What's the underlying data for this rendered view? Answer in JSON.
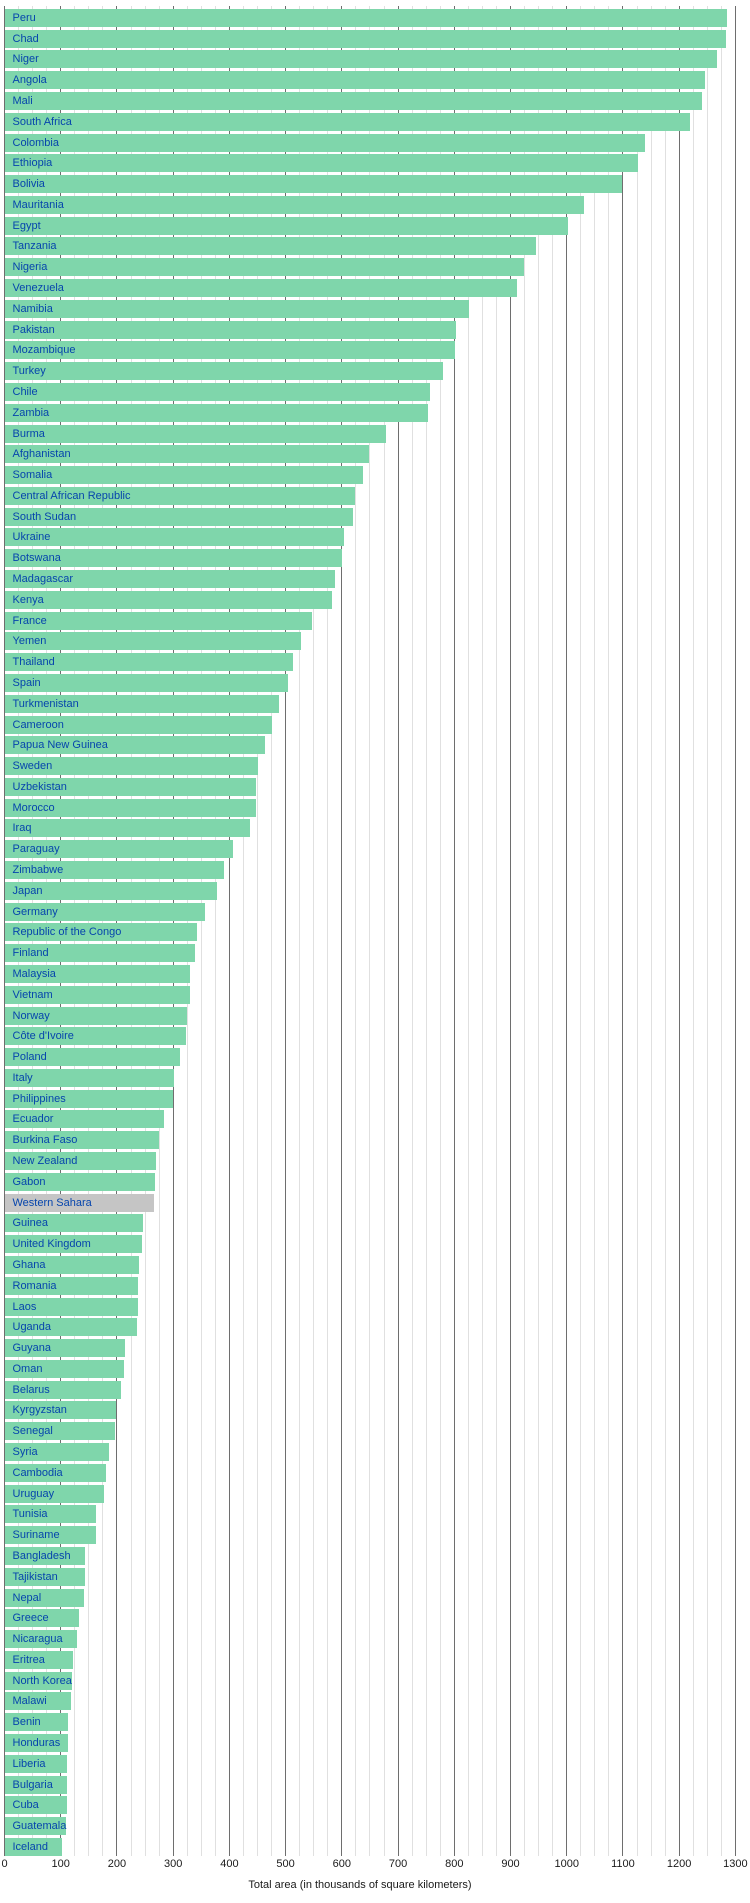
{
  "chart_data": {
    "type": "bar",
    "orientation": "horizontal",
    "title": "",
    "xlabel": "Total area (in thousands of square kilometers)",
    "ylabel": "",
    "x_axis": {
      "min": 0,
      "max": 1300,
      "major_step": 100,
      "minor_step": 25,
      "tick_labels": [
        "0",
        "100",
        "200",
        "300",
        "400",
        "500",
        "600",
        "700",
        "800",
        "900",
        "1000",
        "1100",
        "1200",
        "1300"
      ]
    },
    "legend": "none",
    "grid": "vertical, minor every 25 (light), major every 100 (dark)",
    "colors": {
      "bar": "#7fd6ab",
      "highlight_bar": "#c5c5c5",
      "label_link": "#0645ad",
      "gridline_minor": "#e0e0e0",
      "gridline_major": "#6e6e6e",
      "axis_text": "#1a1a1a"
    },
    "rows": [
      {
        "label": "Peru",
        "value": 1285.2
      },
      {
        "label": "Chad",
        "value": 1284.0
      },
      {
        "label": "Niger",
        "value": 1267.0
      },
      {
        "label": "Angola",
        "value": 1246.7
      },
      {
        "label": "Mali",
        "value": 1240.0
      },
      {
        "label": "South Africa",
        "value": 1219.9
      },
      {
        "label": "Colombia",
        "value": 1138.9
      },
      {
        "label": "Ethiopia",
        "value": 1127.1
      },
      {
        "label": "Bolivia",
        "value": 1098.6
      },
      {
        "label": "Mauritania",
        "value": 1030.7
      },
      {
        "label": "Egypt",
        "value": 1001.5
      },
      {
        "label": "Tanzania",
        "value": 945.1
      },
      {
        "label": "Nigeria",
        "value": 923.8
      },
      {
        "label": "Venezuela",
        "value": 912.1
      },
      {
        "label": "Namibia",
        "value": 825.4
      },
      {
        "label": "Pakistan",
        "value": 803.9
      },
      {
        "label": "Mozambique",
        "value": 801.6
      },
      {
        "label": "Turkey",
        "value": 780.6
      },
      {
        "label": "Chile",
        "value": 757.0
      },
      {
        "label": "Zambia",
        "value": 752.6
      },
      {
        "label": "Burma",
        "value": 678.5
      },
      {
        "label": "Afghanistan",
        "value": 647.5
      },
      {
        "label": "Somalia",
        "value": 637.7
      },
      {
        "label": "Central African Republic",
        "value": 623.0
      },
      {
        "label": "South Sudan",
        "value": 619.7
      },
      {
        "label": "Ukraine",
        "value": 603.7
      },
      {
        "label": "Botswana",
        "value": 600.4
      },
      {
        "label": "Madagascar",
        "value": 587.0
      },
      {
        "label": "Kenya",
        "value": 582.7
      },
      {
        "label": "France",
        "value": 547.0
      },
      {
        "label": "Yemen",
        "value": 528.0
      },
      {
        "label": "Thailand",
        "value": 514.0
      },
      {
        "label": "Spain",
        "value": 504.8
      },
      {
        "label": "Turkmenistan",
        "value": 488.1
      },
      {
        "label": "Cameroon",
        "value": 475.4
      },
      {
        "label": "Papua New Guinea",
        "value": 462.8
      },
      {
        "label": "Sweden",
        "value": 450.0
      },
      {
        "label": "Uzbekistan",
        "value": 447.4
      },
      {
        "label": "Morocco",
        "value": 446.6
      },
      {
        "label": "Iraq",
        "value": 437.1
      },
      {
        "label": "Paraguay",
        "value": 406.8
      },
      {
        "label": "Zimbabwe",
        "value": 390.6
      },
      {
        "label": "Japan",
        "value": 377.8
      },
      {
        "label": "Germany",
        "value": 357.0
      },
      {
        "label": "Republic of the Congo",
        "value": 342.0
      },
      {
        "label": "Finland",
        "value": 338.1
      },
      {
        "label": "Malaysia",
        "value": 329.8
      },
      {
        "label": "Vietnam",
        "value": 329.6
      },
      {
        "label": "Norway",
        "value": 324.2
      },
      {
        "label": "Côte d'Ivoire",
        "value": 322.5
      },
      {
        "label": "Poland",
        "value": 312.7
      },
      {
        "label": "Italy",
        "value": 301.2
      },
      {
        "label": "Philippines",
        "value": 300.0
      },
      {
        "label": "Ecuador",
        "value": 283.6
      },
      {
        "label": "Burkina Faso",
        "value": 274.2
      },
      {
        "label": "New Zealand",
        "value": 268.7
      },
      {
        "label": "Gabon",
        "value": 267.7
      },
      {
        "label": "Western Sahara",
        "value": 266.0,
        "highlight": true
      },
      {
        "label": "Guinea",
        "value": 245.9
      },
      {
        "label": "United Kingdom",
        "value": 244.8
      },
      {
        "label": "Ghana",
        "value": 238.5
      },
      {
        "label": "Romania",
        "value": 237.5
      },
      {
        "label": "Laos",
        "value": 236.8
      },
      {
        "label": "Uganda",
        "value": 236.0
      },
      {
        "label": "Guyana",
        "value": 215.0
      },
      {
        "label": "Oman",
        "value": 212.5
      },
      {
        "label": "Belarus",
        "value": 207.6
      },
      {
        "label": "Kyrgyzstan",
        "value": 198.5
      },
      {
        "label": "Senegal",
        "value": 196.7
      },
      {
        "label": "Syria",
        "value": 185.2
      },
      {
        "label": "Cambodia",
        "value": 181.0
      },
      {
        "label": "Uruguay",
        "value": 176.2
      },
      {
        "label": "Tunisia",
        "value": 163.6
      },
      {
        "label": "Suriname",
        "value": 163.3
      },
      {
        "label": "Bangladesh",
        "value": 144.0
      },
      {
        "label": "Tajikistan",
        "value": 143.1
      },
      {
        "label": "Nepal",
        "value": 140.8
      },
      {
        "label": "Greece",
        "value": 131.9
      },
      {
        "label": "Nicaragua",
        "value": 129.5
      },
      {
        "label": "Eritrea",
        "value": 121.3
      },
      {
        "label": "North Korea",
        "value": 120.5
      },
      {
        "label": "Malawi",
        "value": 118.5
      },
      {
        "label": "Benin",
        "value": 112.6
      },
      {
        "label": "Honduras",
        "value": 112.1
      },
      {
        "label": "Liberia",
        "value": 111.4
      },
      {
        "label": "Bulgaria",
        "value": 110.9
      },
      {
        "label": "Cuba",
        "value": 110.9
      },
      {
        "label": "Guatemala",
        "value": 108.9
      },
      {
        "label": "Iceland",
        "value": 103.0
      }
    ]
  }
}
